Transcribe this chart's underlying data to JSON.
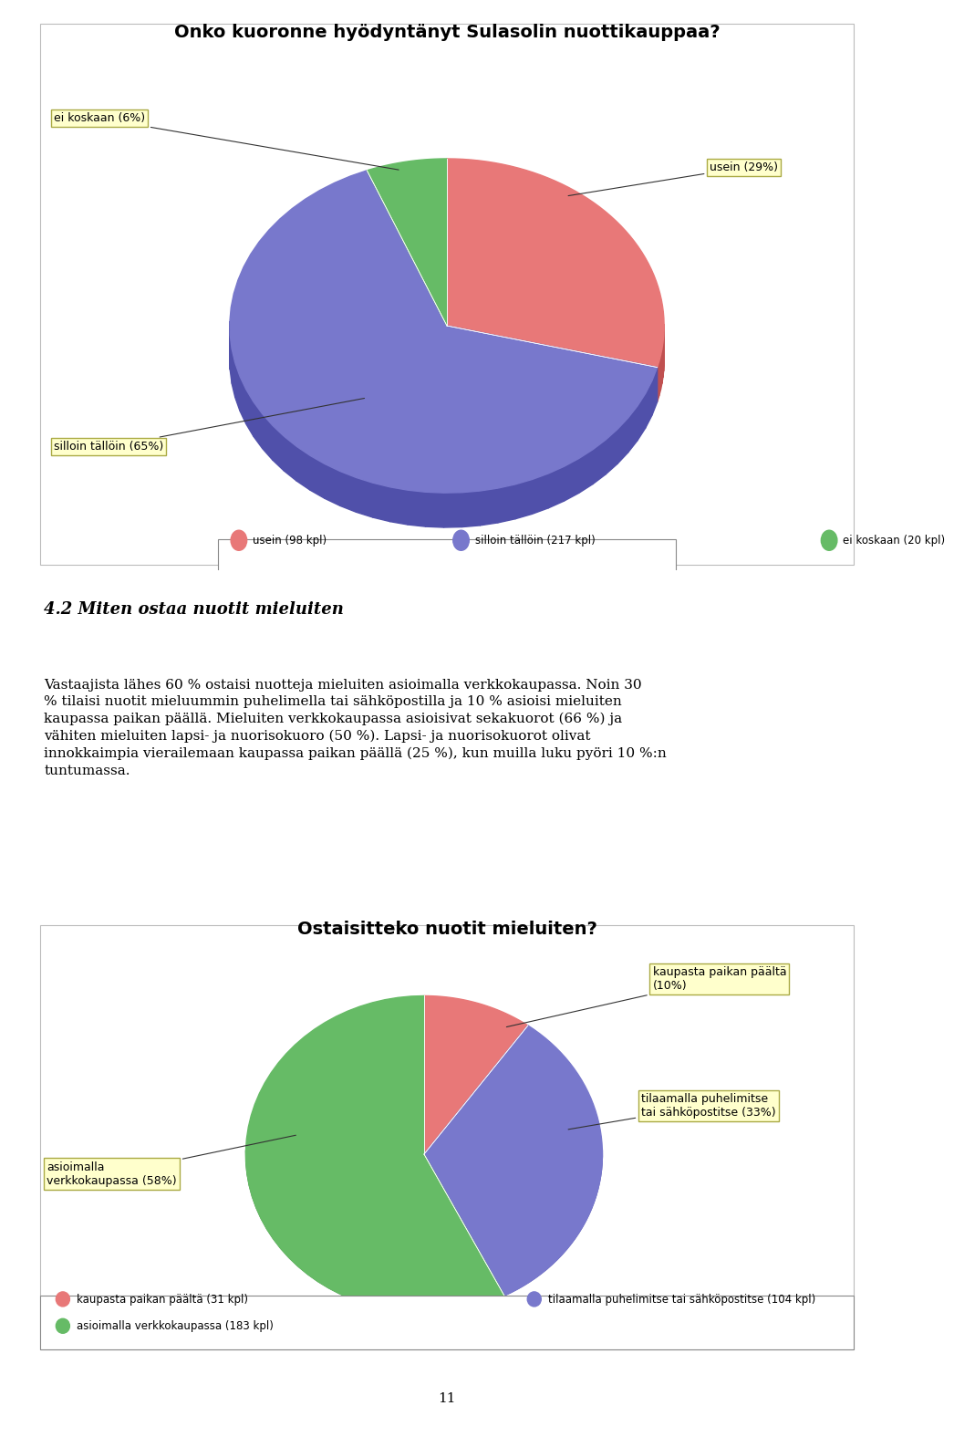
{
  "chart1_title": "Onko kuoronne hyödyntänyt Sulasolin nuottikauppaa?",
  "chart1_slices": [
    29,
    65,
    6
  ],
  "chart1_labels": [
    "usein (29%)",
    "silloin tällöin (65%)",
    "ei koskaan (6%)"
  ],
  "chart1_colors": [
    "#E87878",
    "#7878CC",
    "#66BB66"
  ],
  "chart1_shadow_colors": [
    "#C05050",
    "#5050AA",
    "#448844"
  ],
  "chart1_legend": [
    "usein (98 kpl)",
    "silloin tällöin (217 kpl)",
    "ei koskaan (20 kpl)"
  ],
  "chart1_legend_colors": [
    "#E87878",
    "#7878CC",
    "#66BB66"
  ],
  "chart2_title": "Ostaisitteko nuotit mieluiten?",
  "chart2_slices": [
    10,
    33,
    58
  ],
  "chart2_labels": [
    "kaupasta paikan päältä\n(10%)",
    "tilaamalla puhelimitse\ntai sähköpostitse (33%)",
    "asioimalla\nverkkokaupassa (58%)"
  ],
  "chart2_colors": [
    "#E87878",
    "#7878CC",
    "#66BB66"
  ],
  "chart2_shadow_colors": [
    "#C05050",
    "#5050AA",
    "#448844"
  ],
  "chart2_legend": [
    "kaupasta paikan päältä (31 kpl)",
    "tilaamalla puhelimitse tai sähköpostitse (104 kpl)",
    "asioimalla verkkokaupassa (183 kpl)"
  ],
  "chart2_legend_colors": [
    "#E87878",
    "#7878CC",
    "#66BB66"
  ],
  "section_title": "4.2 Miten ostaa nuotit mieluiten",
  "body_text": "Vastaajista lähes 60 % ostaisi nuotteja mieluiten asioimalla verkkokaupassa. Noin 30 % tilaisi nuotit mieluummin puhelimella tai sähköpostilla ja 10 % asioisi mieluiten kaupassa paikan päällä. Mieluiten verkkokaupassa asioisivat sekakuorot (66 %) ja vähiten mieluiten lapsi- ja nuorisokuoro (50 %). Lapsi- ja nuorisokuorot olivat innokkaimpia vierailemaan kaupassa paikan päällä (25 %), kun muilla luku pyöri 10 %:n tuntumassa.",
  "page_number": "11",
  "bg_color": "#FFFFFF",
  "annotation_bg": "#FFFFCC",
  "annotation_border": "#AAAA44"
}
